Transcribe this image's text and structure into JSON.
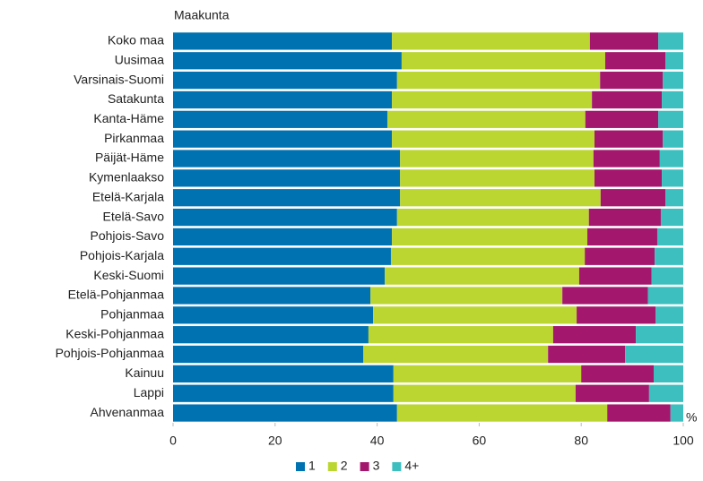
{
  "chart_data": {
    "type": "stacked_barh",
    "y_axis_title": "Maakunta",
    "x_axis_title": "%",
    "categories": [
      "Koko maa",
      "Uusimaa",
      "Varsinais-Suomi",
      "Satakunta",
      "Kanta-Häme",
      "Pirkanmaa",
      "Päijät-Häme",
      "Kymenlaakso",
      "Etelä-Karjala",
      "Etelä-Savo",
      "Pohjois-Savo",
      "Pohjois-Karjala",
      "Keski-Suomi",
      "Etelä-Pohjanmaa",
      "Pohjanmaa",
      "Keski-Pohjanmaa",
      "Pohjois-Pohjanmaa",
      "Kainuu",
      "Lappi",
      "Ahvenanmaa"
    ],
    "series": [
      {
        "name": "1",
        "color": "#0072b2",
        "values": [
          42.9,
          44.8,
          43.9,
          42.9,
          42.0,
          42.9,
          44.5,
          44.5,
          44.5,
          43.9,
          42.9,
          42.7,
          41.5,
          38.7,
          39.2,
          38.3,
          37.3,
          43.2,
          43.2,
          43.9
        ]
      },
      {
        "name": "2",
        "color": "#bcd631",
        "values": [
          38.8,
          39.9,
          39.8,
          39.2,
          38.8,
          39.7,
          37.9,
          38.1,
          39.3,
          37.6,
          38.3,
          38.0,
          38.1,
          37.6,
          39.9,
          36.2,
          36.2,
          36.8,
          35.7,
          41.2
        ]
      },
      {
        "name": "3",
        "color": "#a3176d",
        "values": [
          13.4,
          11.8,
          12.3,
          13.7,
          14.3,
          13.4,
          13.0,
          13.2,
          12.7,
          14.1,
          13.7,
          13.7,
          14.2,
          16.8,
          15.5,
          16.2,
          15.1,
          14.2,
          14.4,
          12.4
        ]
      },
      {
        "name": "4+",
        "color": "#3dbfc0",
        "values": [
          4.9,
          3.5,
          4.0,
          4.2,
          4.9,
          4.0,
          4.6,
          4.2,
          3.5,
          4.4,
          5.1,
          5.6,
          6.2,
          6.9,
          5.4,
          9.3,
          11.4,
          5.8,
          6.7,
          2.5
        ]
      }
    ],
    "xlim": [
      0,
      100
    ],
    "xticks": [
      0,
      20,
      40,
      60,
      80,
      100
    ],
    "legend": "bottom"
  }
}
